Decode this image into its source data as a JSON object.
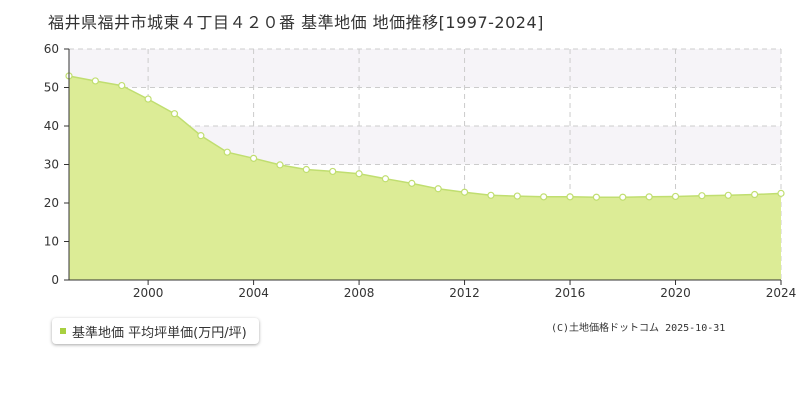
{
  "title": "福井県福井市城東４丁目４２０番 基準地価 地価推移[1997-2024]",
  "legend": {
    "label": "基準地価 平均坪単価(万円/坪)"
  },
  "copyright": "(C)土地価格ドットコム 2025-10-31",
  "colors": {
    "line": "#c0de70",
    "fill": "#dcec96",
    "marker_fill": "#ffffff",
    "legend_marker": "#a8d040",
    "band": "#f6f4f8",
    "grid": "#cccccc",
    "axis": "#333333"
  },
  "chart_data": {
    "type": "area",
    "title": "福井県福井市城東４丁目４２０番 基準地価 地価推移[1997-2024]",
    "xlabel": "",
    "ylabel": "",
    "xlim": [
      1997,
      2024
    ],
    "ylim": [
      0,
      60
    ],
    "x_ticks": [
      "2000",
      "2004",
      "2008",
      "2012",
      "2016",
      "2020",
      "2024"
    ],
    "y_ticks": [
      "0",
      "10",
      "20",
      "30",
      "40",
      "50",
      "60"
    ],
    "grid": true,
    "legend_position": "bottom-left",
    "series": [
      {
        "name": "基準地価 平均坪単価(万円/坪)",
        "x": [
          1997,
          1998,
          1999,
          2000,
          2001,
          2002,
          2003,
          2004,
          2005,
          2006,
          2007,
          2008,
          2009,
          2010,
          2011,
          2012,
          2013,
          2014,
          2015,
          2016,
          2017,
          2018,
          2019,
          2020,
          2021,
          2022,
          2023,
          2024
        ],
        "values": [
          53.0,
          51.7,
          50.5,
          47.0,
          43.2,
          37.5,
          33.2,
          31.6,
          29.9,
          28.7,
          28.2,
          27.6,
          26.3,
          25.1,
          23.7,
          22.8,
          22.0,
          21.8,
          21.6,
          21.6,
          21.5,
          21.5,
          21.6,
          21.7,
          21.9,
          22.0,
          22.2,
          22.5
        ]
      }
    ]
  }
}
